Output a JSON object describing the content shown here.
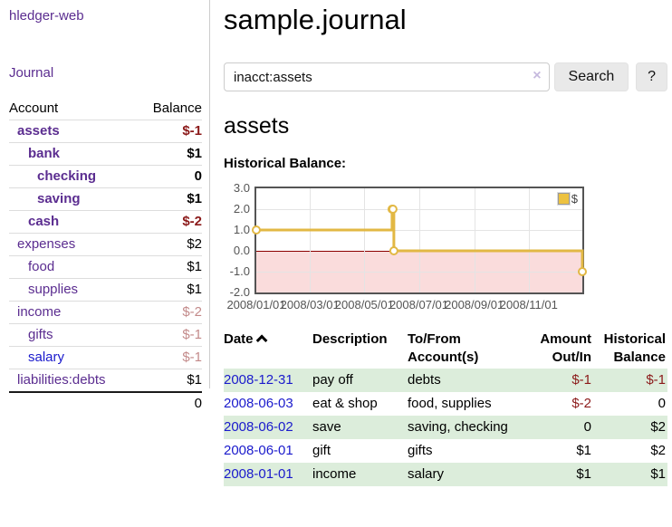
{
  "app": {
    "title": "hledger-web"
  },
  "sidebar": {
    "journal_link": "Journal",
    "accounts": {
      "headers": {
        "account": "Account",
        "balance": "Balance"
      },
      "rows": [
        {
          "name": "assets",
          "balance": "$-1"
        },
        {
          "name": "bank",
          "balance": "$1"
        },
        {
          "name": "checking",
          "balance": "0"
        },
        {
          "name": "saving",
          "balance": "$1"
        },
        {
          "name": "cash",
          "balance": "$-2"
        },
        {
          "name": "expenses",
          "balance": "$2"
        },
        {
          "name": "food",
          "balance": "$1"
        },
        {
          "name": "supplies",
          "balance": "$1"
        },
        {
          "name": "income",
          "balance": "$-2"
        },
        {
          "name": "gifts",
          "balance": "$-1"
        },
        {
          "name": "salary",
          "balance": "$-1"
        },
        {
          "name": "liabilities:debts",
          "balance": "$1"
        }
      ],
      "total": "0"
    }
  },
  "main": {
    "page_title": "sample.journal",
    "search": {
      "value": "inacct:assets",
      "clear_icon": "×",
      "search_label": "Search",
      "help_label": "?"
    },
    "account_heading": "assets",
    "chart_heading": "Historical Balance:"
  },
  "chart_data": {
    "type": "line",
    "title": "Historical Balance:",
    "step": true,
    "series": [
      {
        "name": "$",
        "points": [
          [
            "2008-01-01",
            1
          ],
          [
            "2008-06-01",
            2
          ],
          [
            "2008-06-02",
            2
          ],
          [
            "2008-06-03",
            0
          ],
          [
            "2008-12-31",
            -1
          ]
        ]
      }
    ],
    "xrange": [
      "2008-01-01",
      "2008-12-31"
    ],
    "ylim": [
      -2,
      3
    ],
    "yticks": [
      "3.0",
      "2.0",
      "1.0",
      "0.0",
      "-1.0",
      "-2.0"
    ],
    "xticks": [
      "2008/01/01",
      "2008/03/01",
      "2008/05/01",
      "2008/07/01",
      "2008/09/01",
      "2008/11/01"
    ],
    "legend": "$",
    "legend_position": "top-right",
    "grid": true,
    "line_color": "#e2b844",
    "marker_fill": "#ffffff",
    "negative_region_color": "#fadcdc",
    "zero_line_color": "#8b0000"
  },
  "transactions": {
    "headers": {
      "date": "Date",
      "description": "Description",
      "accounts": "To/From Account(s)",
      "amount": "Amount Out/In",
      "balance": "Historical Balance"
    },
    "sort": {
      "column": "date",
      "direction": "ascending"
    },
    "rows": [
      {
        "date": "2008-12-31",
        "description": "pay off",
        "accounts": "debts",
        "amount": "$-1",
        "balance": "$-1"
      },
      {
        "date": "2008-06-03",
        "description": "eat & shop",
        "accounts": "food, supplies",
        "amount": "$-2",
        "balance": "0"
      },
      {
        "date": "2008-06-02",
        "description": "save",
        "accounts": "saving, checking",
        "amount": "0",
        "balance": "$2"
      },
      {
        "date": "2008-06-01",
        "description": "gift",
        "accounts": "gifts",
        "amount": "$1",
        "balance": "$2"
      },
      {
        "date": "2008-01-01",
        "description": "income",
        "accounts": "salary",
        "amount": "$1",
        "balance": "$1"
      }
    ]
  },
  "colors": {
    "link_purple": "#5b2d90",
    "link_blue": "#1a1acc",
    "negative": "#8b1a1a",
    "negative_faded": "rgba(139,26,26,0.52)",
    "row_stripe_green": "#dceddb",
    "chart_gold": "#e2b844",
    "chart_negative_pink": "#fadcdc",
    "axis_gray": "#545454"
  }
}
